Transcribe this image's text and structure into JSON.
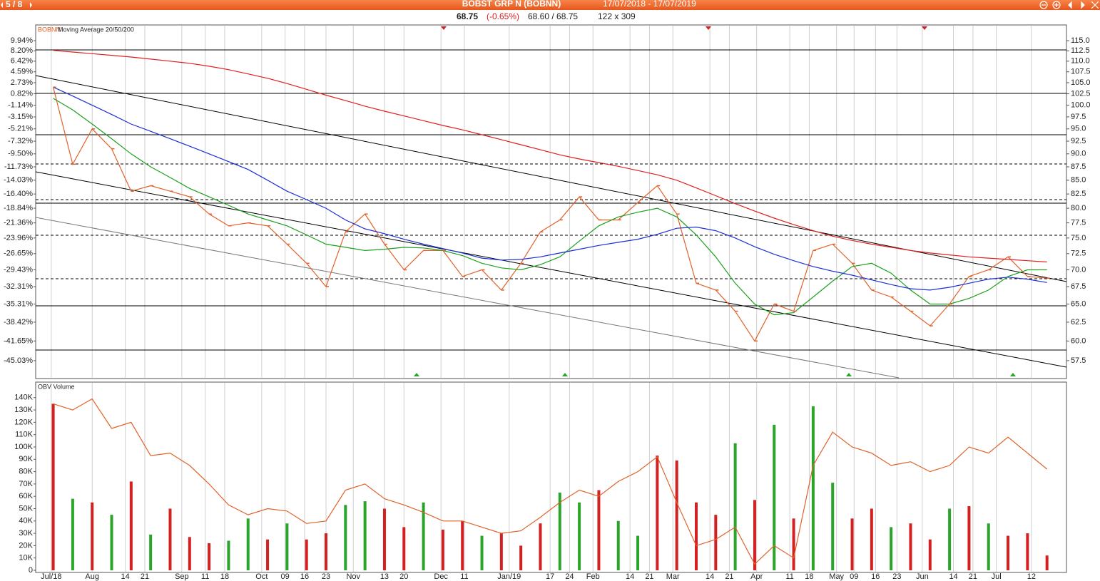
{
  "header": {
    "page": "5 / 8",
    "title": "BOBST GRP N (BOBNN)",
    "date_range": "17/07/2018 - 17/07/2019"
  },
  "quote": {
    "last": 68.75,
    "change": "(-0.65%)",
    "bid_ask": "68.60 / 68.75",
    "size": "122 x 309"
  },
  "chart_data": [
    {
      "type": "line",
      "title": "Moving Average 20/50/200",
      "log_scale": true,
      "ylim": [
        55.4,
        118.8
      ],
      "yticks": [
        {
          "value": 115,
          "label": "115.0"
        },
        112.5,
        {
          "value": 110,
          "label": "110.0"
        },
        107.5,
        {
          "value": 105,
          "label": "105.0"
        },
        102.5,
        {
          "value": 100,
          "label": "100.0"
        },
        97.5,
        {
          "value": 95,
          "label": "95.0"
        },
        92.5,
        {
          "value": 90,
          "label": "90.0"
        },
        87.5,
        {
          "value": 85,
          "label": "85.0"
        },
        82.5,
        {
          "value": 80,
          "label": "80.0"
        },
        77.5,
        {
          "value": 75,
          "label": "75.0"
        },
        72.5,
        {
          "value": 70,
          "label": "70.0"
        },
        67.5,
        {
          "value": 65,
          "label": "65.0"
        },
        62.5,
        {
          "value": 60,
          "label": "60.0"
        },
        57.5
      ],
      "y2ticks": [
        {
          "value": 9.94,
          "label": "9.94%"
        },
        {
          "value": 8.2,
          "label": "8.20%"
        },
        {
          "value": 6.42,
          "label": "6.42%"
        },
        {
          "value": 4.59,
          "label": "4.59%"
        },
        {
          "value": 2.73,
          "label": "2.73%"
        },
        {
          "value": 0.82,
          "label": "0.82%"
        },
        {
          "value": -1.14,
          "label": "-1.14%"
        },
        {
          "value": -3.15,
          "label": "-3.15%"
        },
        {
          "value": -5.21,
          "label": "-5.21%"
        },
        {
          "value": -7.32,
          "label": "-7.32%"
        },
        {
          "value": -9.5,
          "label": "-9.50%"
        },
        {
          "value": -11.73,
          "label": "-11.73%"
        },
        {
          "value": -14.03,
          "label": "-14.03%"
        },
        {
          "value": -16.4,
          "label": "-16.40%"
        },
        {
          "value": -18.84,
          "label": "-18.84%"
        },
        {
          "value": -21.36,
          "label": "-21.36%"
        },
        {
          "value": -23.96,
          "label": "-23.96%"
        },
        {
          "value": -26.65,
          "label": "-26.65%"
        },
        {
          "value": -29.43,
          "label": "-29.43%"
        },
        {
          "value": -32.31,
          "label": "-32.31%"
        },
        {
          "value": -35.31,
          "label": "-35.31%"
        },
        {
          "value": -38.42,
          "label": "-38.42%"
        },
        {
          "value": -41.65,
          "label": "-41.65%"
        },
        {
          "value": -45.03,
          "label": "-45.03%"
        }
      ],
      "xlim": [
        -0.9,
        52
      ],
      "xticks": [
        {
          "value": -0.1,
          "label": "Jul/18"
        },
        {
          "value": 2.0,
          "label": "Aug"
        },
        {
          "value": 3.7,
          "label": "14"
        },
        {
          "value": 4.7,
          "label": "21"
        },
        {
          "value": 6.6,
          "label": "Sep"
        },
        {
          "value": 7.8,
          "label": "11"
        },
        {
          "value": 8.8,
          "label": "18"
        },
        {
          "value": 10.7,
          "label": "Oct"
        },
        {
          "value": 11.9,
          "label": "09"
        },
        {
          "value": 12.9,
          "label": "16"
        },
        {
          "value": 14.0,
          "label": "23"
        },
        {
          "value": 15.4,
          "label": "Nov"
        },
        {
          "value": 17.0,
          "label": "13"
        },
        {
          "value": 18.0,
          "label": "20"
        },
        {
          "value": 19.9,
          "label": "Dec"
        },
        {
          "value": 21.1,
          "label": "11"
        },
        {
          "value": 23.4,
          "label": "Jan/19"
        },
        {
          "value": 25.5,
          "label": "17"
        },
        {
          "value": 26.5,
          "label": "24"
        },
        {
          "value": 27.7,
          "label": "Feb"
        },
        {
          "value": 29.6,
          "label": "14"
        },
        {
          "value": 30.6,
          "label": "21"
        },
        {
          "value": 31.8,
          "label": "Mar"
        },
        {
          "value": 33.7,
          "label": "14"
        },
        {
          "value": 34.7,
          "label": "21"
        },
        {
          "value": 36.1,
          "label": "Apr"
        },
        {
          "value": 37.8,
          "label": "11"
        },
        {
          "value": 38.8,
          "label": "18"
        },
        {
          "value": 40.2,
          "label": "May"
        },
        {
          "value": 41.1,
          "label": "09"
        },
        {
          "value": 42.2,
          "label": "16"
        },
        {
          "value": 43.3,
          "label": "23"
        },
        {
          "value": 44.6,
          "label": "Jun"
        },
        {
          "value": 46.2,
          "label": "14"
        },
        {
          "value": 47.2,
          "label": "21"
        },
        {
          "value": 48.4,
          "label": "Jul"
        },
        {
          "value": 50.2,
          "label": "12"
        }
      ],
      "series": [
        {
          "name": "BOBNN",
          "color": "#e0622a",
          "values": [
            104,
            88,
            95,
            91,
            83,
            84,
            83,
            82,
            79,
            77,
            77.5,
            77,
            74,
            71,
            67.5,
            76,
            79,
            74,
            70,
            73,
            73,
            69,
            70,
            67,
            71,
            76,
            78,
            82,
            78,
            78,
            81,
            84,
            79,
            68,
            67,
            64,
            60,
            65,
            64,
            73,
            74,
            71,
            67,
            66,
            64,
            62,
            65,
            69,
            70,
            72,
            69,
            68.75
          ]
        },
        {
          "color": "#1ca01c",
          "values": [
            101.5,
            99,
            96,
            93,
            90,
            87.5,
            85.5,
            83.5,
            82,
            80.5,
            79,
            78,
            77,
            75.5,
            74,
            73.5,
            73,
            73.2,
            73.5,
            73.4,
            73,
            72.2,
            71,
            70.3,
            70,
            70.8,
            72,
            74.5,
            77,
            78.5,
            79.3,
            80,
            78.5,
            75.5,
            72,
            68,
            65,
            63.5,
            63.8,
            66,
            68.3,
            70.5,
            71,
            69.5,
            67,
            65,
            65,
            65.8,
            67,
            69,
            70,
            70
          ]
        },
        {
          "color": "#1c2fd6",
          "values": [
            104,
            102,
            100,
            98,
            96,
            94.5,
            93,
            91.5,
            90,
            88.5,
            87,
            85,
            83,
            81.5,
            80,
            78,
            76.5,
            75.7,
            74.8,
            74,
            73.3,
            72.6,
            71.8,
            71.5,
            71.6,
            72,
            72.6,
            73.2,
            73.8,
            74.3,
            74.8,
            75.6,
            76.6,
            76.8,
            76.2,
            75,
            73.6,
            72.4,
            71.4,
            70.5,
            69.8,
            69.2,
            68.5,
            67.8,
            67.2,
            67,
            67.4,
            68,
            68.6,
            68.9,
            68.6,
            68.1
          ]
        },
        {
          "color": "#e02020",
          "values": [
            112.6,
            112.2,
            111.8,
            111.4,
            111,
            110.5,
            110,
            109.5,
            108.8,
            108,
            107,
            106,
            104.8,
            103.5,
            102.2,
            101,
            99.8,
            98.7,
            97.7,
            96.7,
            95.7,
            94.8,
            93.8,
            92.8,
            91.8,
            90.8,
            89.8,
            89,
            88.3,
            87.6,
            86.8,
            86,
            85,
            83.6,
            82.2,
            80.8,
            79.5,
            78.3,
            77.2,
            76.2,
            75.3,
            74.6,
            74,
            73.5,
            73,
            72.6,
            72.3,
            72,
            71.8,
            71.6,
            71.4,
            71.2
          ]
        }
      ]
    },
    {
      "type": "bar",
      "title": "OBV Volume",
      "ylim": [
        0,
        152000
      ],
      "yticks": [
        0,
        {
          "value": 10000,
          "label": "10K"
        },
        {
          "value": 20000,
          "label": "20K"
        },
        {
          "value": 30000,
          "label": "30K"
        },
        {
          "value": 40000,
          "label": "40K"
        },
        {
          "value": 50000,
          "label": "50K"
        },
        {
          "value": 60000,
          "label": "60K"
        },
        {
          "value": 70000,
          "label": "70K"
        },
        {
          "value": 80000,
          "label": "80K"
        },
        {
          "value": 90000,
          "label": "90K"
        },
        {
          "value": 100000,
          "label": "100K"
        },
        {
          "value": 110000,
          "label": "110K"
        },
        {
          "value": 120000,
          "label": "120K"
        },
        {
          "value": 130000,
          "label": "130K"
        },
        {
          "value": 140000,
          "label": "140K"
        }
      ],
      "series": [
        {
          "values": [
            135000,
            58000,
            55000,
            45000,
            72000,
            29000,
            50000,
            27000,
            22000,
            24000,
            42000,
            25000,
            38000,
            25000,
            30000,
            53000,
            56000,
            50000,
            35000,
            55000,
            33000,
            40000,
            28000,
            30000,
            20000,
            38000,
            63000,
            55000,
            65000,
            40000,
            28000,
            93000,
            89000,
            55000,
            45000,
            103000,
            57000,
            118000,
            42000,
            133000,
            71000,
            42000,
            50000,
            35000,
            38000,
            25000,
            50000,
            52000,
            38000,
            28000,
            30000,
            12000
          ],
          "colors": [
            "#d42020",
            "#2aa52a",
            "#d42020",
            "#2aa52a",
            "#d42020",
            "#2aa52a",
            "#d42020",
            "#d42020",
            "#d42020",
            "#2aa52a",
            "#2aa52a",
            "#d42020",
            "#2aa52a",
            "#d42020",
            "#d42020",
            "#2aa52a",
            "#2aa52a",
            "#d42020",
            "#d42020",
            "#2aa52a",
            "#d42020",
            "#d42020",
            "#2aa52a",
            "#d42020",
            "#d42020",
            "#d42020",
            "#2aa52a",
            "#2aa52a",
            "#d42020",
            "#2aa52a",
            "#2aa52a",
            "#d42020",
            "#d42020",
            "#d42020",
            "#d42020",
            "#2aa52a",
            "#d42020",
            "#2aa52a",
            "#d42020",
            "#2aa52a",
            "#2aa52a",
            "#d42020",
            "#d42020",
            "#2aa52a",
            "#d42020",
            "#d42020",
            "#2aa52a",
            "#d42020",
            "#2aa52a",
            "#d42020",
            "#d42020",
            "#d42020"
          ]
        },
        {
          "type": "line",
          "color": "#e0622a",
          "values": [
            135000,
            130000,
            139000,
            115000,
            120000,
            93000,
            95000,
            85000,
            70000,
            53000,
            45000,
            50000,
            48000,
            38000,
            40000,
            65000,
            70000,
            58000,
            53000,
            47000,
            40000,
            40000,
            35000,
            30000,
            32000,
            43000,
            55000,
            65000,
            60000,
            72000,
            80000,
            92000,
            55000,
            20000,
            25000,
            35000,
            5000,
            20000,
            10000,
            85000,
            112000,
            100000,
            95000,
            85000,
            88000,
            80000,
            85000,
            100000,
            95000,
            108000,
            95000,
            82000
          ]
        }
      ]
    }
  ]
}
